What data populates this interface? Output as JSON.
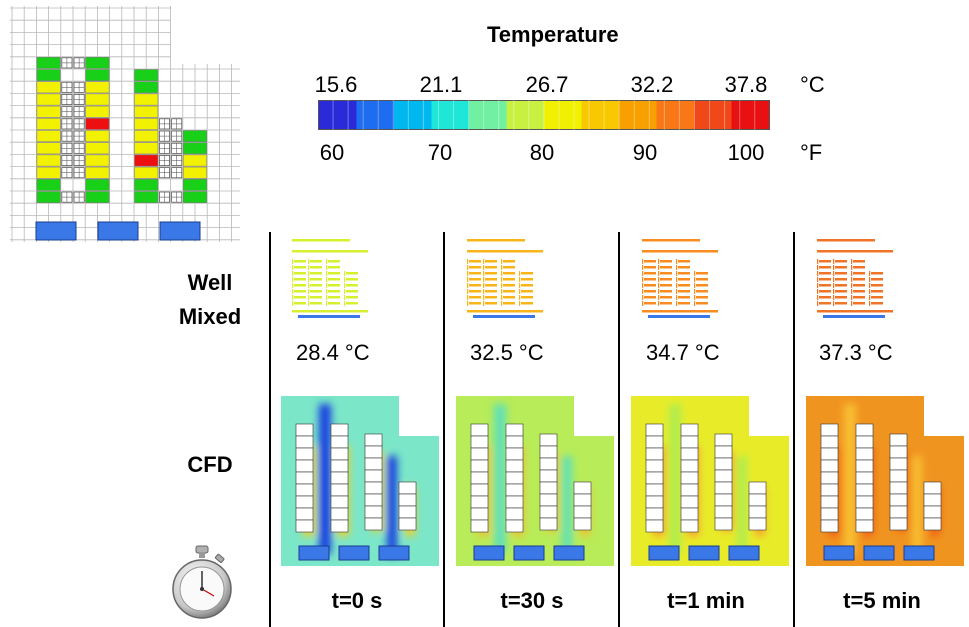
{
  "legend": {
    "title": "Temperature",
    "celsius_ticks": [
      "15.6",
      "21.1",
      "26.7",
      "32.2",
      "37.8"
    ],
    "celsius_unit": "°C",
    "fahrenheit_ticks": [
      "60",
      "70",
      "80",
      "90",
      "100"
    ],
    "fahrenheit_unit": "°F",
    "colormap": [
      "#2a2ad8",
      "#1e6cf0",
      "#00b8f0",
      "#20e6d8",
      "#70f0a0",
      "#c8f040",
      "#f0f000",
      "#f8c800",
      "#f8a000",
      "#f87818",
      "#f04818",
      "#e81010"
    ]
  },
  "row_labels": {
    "well_mixed": "Well\nMixed",
    "cfd": "CFD"
  },
  "overview_plan": {
    "rack_colors": {
      "green": "#18d018",
      "yellow": "#f2f200",
      "red": "#ee1010"
    },
    "cooler_color": "#3a78e8"
  },
  "stopwatch_icon": "stopwatch-icon",
  "snapshots": [
    {
      "time_label": "t=0 s",
      "well_mixed_temp": "28.4 °C",
      "wm_color": "#d6f030",
      "cfd_bg": "#7ce6c8",
      "cfd_hot": "#f0d020",
      "cfd_cold": "#1840e0"
    },
    {
      "time_label": "t=30 s",
      "well_mixed_temp": "32.5 °C",
      "wm_color": "#f8b418",
      "cfd_bg": "#b8ec58",
      "cfd_hot": "#f0c030",
      "cfd_cold": "#60e0b8"
    },
    {
      "time_label": "t=1 min",
      "well_mixed_temp": "34.7 °C",
      "wm_color": "#f88c20",
      "cfd_bg": "#e8ec28",
      "cfd_hot": "#f8a030",
      "cfd_cold": "#b0ec50"
    },
    {
      "time_label": "t=5 min",
      "well_mixed_temp": "37.3 °C",
      "wm_color": "#f07428",
      "cfd_bg": "#f09420",
      "cfd_hot": "#f06018",
      "cfd_cold": "#f8c030"
    }
  ]
}
